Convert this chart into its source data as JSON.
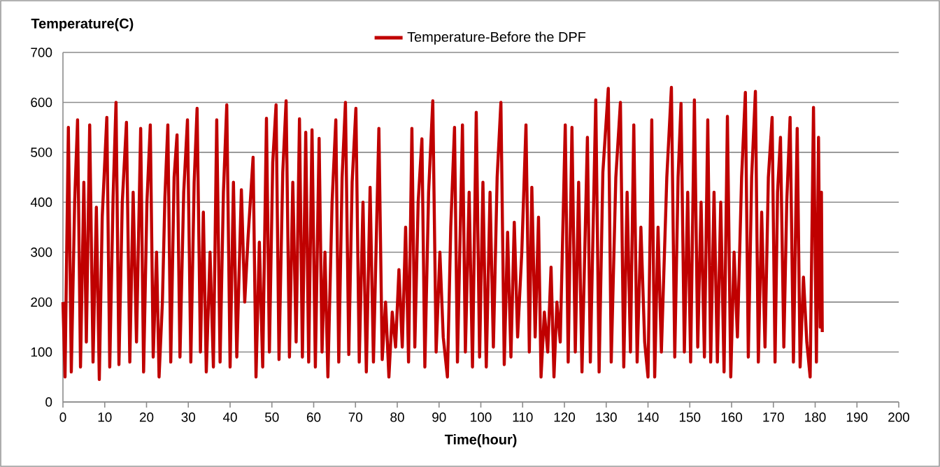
{
  "chart_data": {
    "type": "line",
    "ylabel": "Temperature(C)",
    "xlabel": "Time(hour)",
    "xlim": [
      0,
      200
    ],
    "ylim": [
      0,
      700
    ],
    "xticks": [
      0,
      10,
      20,
      30,
      40,
      50,
      60,
      70,
      80,
      90,
      100,
      110,
      120,
      130,
      140,
      150,
      160,
      170,
      180,
      190,
      200
    ],
    "yticks": [
      0,
      100,
      200,
      300,
      400,
      500,
      600,
      700
    ],
    "grid": "y",
    "legend": "top",
    "line_style": "solid",
    "marker": "none",
    "x": [
      0,
      0.5,
      1.3,
      2,
      2.8,
      3.5,
      4.2,
      5,
      5.6,
      6.4,
      7.2,
      8,
      8.7,
      9.4,
      10.5,
      11.2,
      12,
      12.7,
      13.4,
      14.2,
      15.2,
      16,
      16.8,
      17.6,
      18.6,
      19.3,
      20.1,
      20.9,
      21.6,
      22.4,
      23,
      23.8,
      24.4,
      25.1,
      25.8,
      26.6,
      27.3,
      28,
      28.9,
      29.8,
      30.6,
      31.4,
      32.1,
      32.9,
      33.6,
      34.3,
      35.2,
      36,
      36.8,
      37.6,
      38.4,
      39.2,
      40,
      40.8,
      41.6,
      42.7,
      43.5,
      44.3,
      45.5,
      46.2,
      47,
      47.8,
      48.7,
      49.4,
      50.2,
      51,
      51.7,
      52.6,
      53.4,
      54.2,
      55,
      55.8,
      56.6,
      57.3,
      58.1,
      58.8,
      59.6,
      60.4,
      61.3,
      62,
      62.7,
      63.4,
      64.4,
      65.3,
      66,
      66.8,
      67.6,
      68.4,
      69.2,
      70.1,
      70.9,
      71.8,
      72.6,
      73.5,
      74.3,
      75.6,
      76.4,
      77.2,
      78,
      78.8,
      79.6,
      80.4,
      81.2,
      82,
      82.7,
      83.5,
      84.2,
      85,
      85.9,
      86.6,
      87.5,
      88.5,
      89.3,
      90.2,
      91,
      92,
      92.8,
      93.7,
      94.4,
      95.6,
      96.3,
      97.2,
      98,
      98.9,
      99.7,
      100.5,
      101.3,
      102.2,
      103,
      103.9,
      104.8,
      105.6,
      106.4,
      107.2,
      108,
      108.8,
      109.8,
      110.8,
      111.6,
      112.2,
      113,
      113.8,
      114.4,
      115.2,
      116,
      116.8,
      117.5,
      118.2,
      119,
      120.2,
      120.9,
      121.8,
      122.6,
      123.4,
      124.2,
      125.5,
      126.2,
      127.5,
      128.3,
      129.2,
      130.5,
      131.2,
      132.3,
      133.4,
      134.2,
      135,
      135.8,
      136.6,
      137.4,
      138.3,
      139.2,
      140,
      140.9,
      141.6,
      142.4,
      143.2,
      144.5,
      145.6,
      146.4,
      147.2,
      147.9,
      148.7,
      149.5,
      150.2,
      151.1,
      151.9,
      152.7,
      153.5,
      154.3,
      155,
      155.8,
      156.6,
      157.4,
      158.2,
      159,
      159.8,
      160.6,
      161.4,
      162.4,
      163.3,
      164,
      164.8,
      165.7,
      166.4,
      167.2,
      168,
      168.8,
      169.7,
      170.4,
      171,
      171.7,
      172.5,
      173.2,
      174,
      174.8,
      175.7,
      176.4,
      177.2,
      178,
      178.8,
      179.6,
      180.3,
      180.8,
      181.2,
      181.5,
      181.7
    ],
    "series": [
      {
        "name": "Temperature-Before the DPF",
        "color": "#c00000",
        "values": [
          200,
          50,
          550,
          60,
          400,
          565,
          70,
          440,
          120,
          555,
          80,
          390,
          45,
          370,
          570,
          70,
          410,
          600,
          75,
          400,
          560,
          80,
          420,
          120,
          548,
          60,
          400,
          555,
          90,
          300,
          50,
          200,
          410,
          555,
          80,
          450,
          535,
          90,
          420,
          565,
          80,
          440,
          588,
          100,
          380,
          60,
          300,
          70,
          565,
          80,
          420,
          595,
          70,
          440,
          90,
          425,
          200,
          330,
          490,
          50,
          320,
          70,
          568,
          100,
          480,
          595,
          85,
          460,
          603,
          90,
          440,
          120,
          567,
          90,
          540,
          80,
          545,
          70,
          528,
          100,
          300,
          50,
          400,
          565,
          80,
          450,
          600,
          95,
          440,
          588,
          80,
          400,
          60,
          430,
          80,
          548,
          85,
          200,
          50,
          180,
          110,
          265,
          110,
          350,
          80,
          548,
          110,
          400,
          527,
          70,
          420,
          603,
          100,
          300,
          130,
          50,
          350,
          550,
          80,
          555,
          100,
          420,
          70,
          580,
          90,
          440,
          70,
          420,
          110,
          450,
          600,
          75,
          340,
          90,
          360,
          130,
          300,
          555,
          100,
          430,
          130,
          370,
          50,
          180,
          100,
          270,
          50,
          200,
          120,
          555,
          80,
          550,
          100,
          440,
          60,
          530,
          80,
          605,
          60,
          460,
          628,
          80,
          450,
          600,
          70,
          420,
          100,
          555,
          80,
          350,
          120,
          50,
          565,
          50,
          350,
          100,
          450,
          630,
          90,
          450,
          598,
          100,
          420,
          80,
          605,
          110,
          400,
          90,
          565,
          80,
          420,
          80,
          400,
          60,
          572,
          50,
          300,
          130,
          450,
          620,
          90,
          450,
          622,
          80,
          380,
          110,
          450,
          570,
          80,
          420,
          530,
          110,
          400,
          570,
          80,
          548,
          70,
          250,
          120,
          50,
          590,
          80,
          530,
          150,
          420,
          140
        ]
      }
    ]
  }
}
